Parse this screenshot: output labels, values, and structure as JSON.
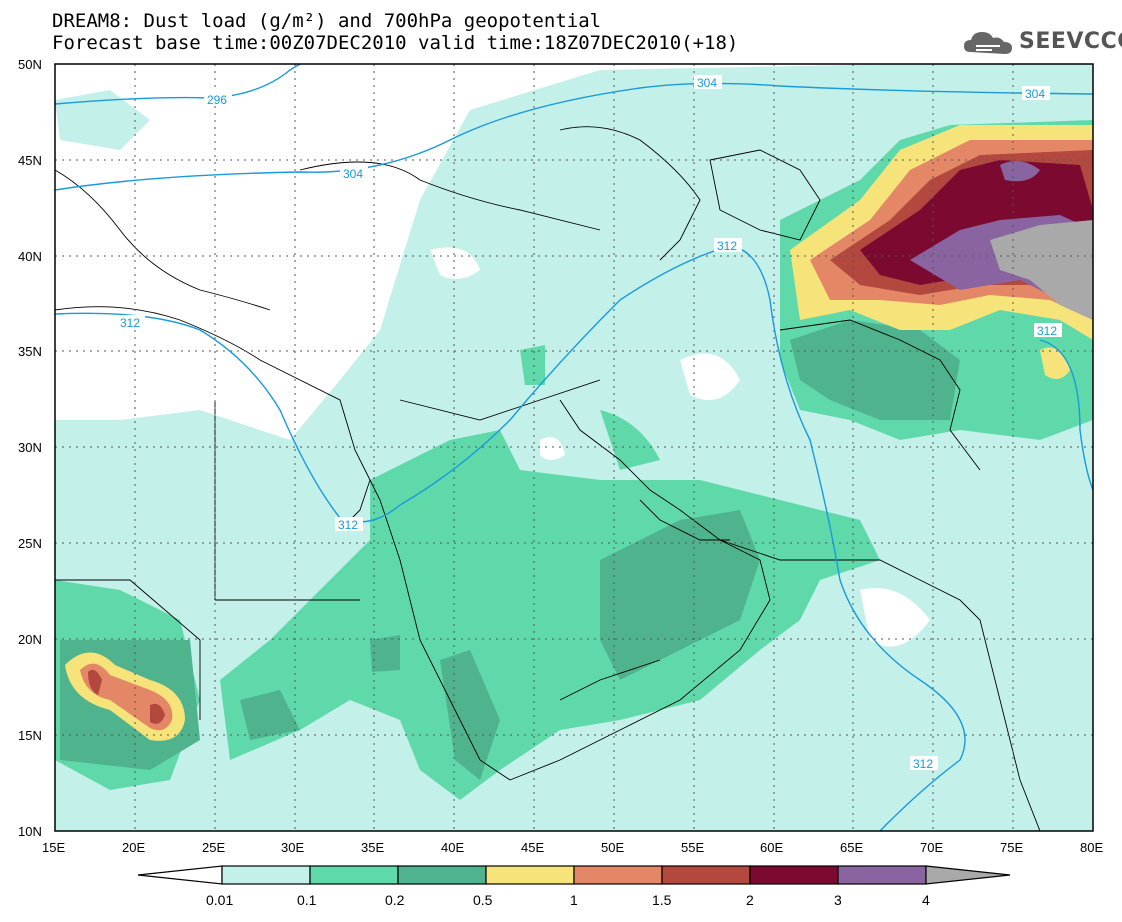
{
  "title": {
    "line1": "DREAM8: Dust load (g/m²) and 700hPa geopotential",
    "line2": "Forecast base time:00Z07DEC2010 valid time:18Z07DEC2010(+18)"
  },
  "logo": {
    "text": "SEEVCCC",
    "icon": "cloud-logo-icon"
  },
  "map": {
    "lon_range": [
      15,
      80
    ],
    "lat_range": [
      10,
      50
    ],
    "x_ticks": [
      "15E",
      "20E",
      "25E",
      "30E",
      "35E",
      "40E",
      "45E",
      "50E",
      "55E",
      "60E",
      "65E",
      "70E",
      "75E",
      "80E"
    ],
    "y_ticks": [
      "10N",
      "15N",
      "20N",
      "25N",
      "30N",
      "35N",
      "40N",
      "45N",
      "50N"
    ],
    "grid": "dotted",
    "contour_color": "#1a9adc",
    "contour_labels": [
      "296",
      "304",
      "304",
      "304",
      "312",
      "312",
      "312",
      "312",
      "312"
    ]
  },
  "colorbar": {
    "labels": [
      "0.01",
      "0.1",
      "0.2",
      "0.5",
      "1",
      "1.5",
      "2",
      "3",
      "4"
    ],
    "colors": [
      "#ffffff",
      "#c4f0ea",
      "#5fd9a9",
      "#4fb48e",
      "#f6e37a",
      "#e38766",
      "#b3483f",
      "#7c0a30",
      "#8a64a0",
      "#a9a9a9"
    ]
  }
}
